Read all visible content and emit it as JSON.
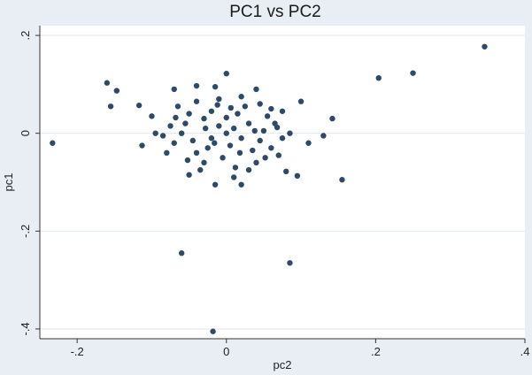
{
  "chart_data": {
    "type": "scatter",
    "title": "PC1 vs PC2",
    "xlabel": "pc2",
    "ylabel": "pc1",
    "xlim": [
      -0.25,
      0.4
    ],
    "ylim": [
      -0.42,
      0.22
    ],
    "xticks": [
      {
        "value": -0.2,
        "label": "-.2"
      },
      {
        "value": 0,
        "label": "0"
      },
      {
        "value": 0.2,
        "label": ".2"
      },
      {
        "value": 0.4,
        "label": ".4"
      }
    ],
    "yticks": [
      {
        "value": 0.2,
        "label": ".2"
      },
      {
        "value": 0,
        "label": "0"
      },
      {
        "value": -0.2,
        "label": "-.2"
      },
      {
        "value": -0.4,
        "label": "-.4"
      }
    ],
    "grid": true,
    "marker_color": "#2d4a68",
    "plot_background": "#ffffff",
    "page_background": "#e8eef3",
    "points": [
      {
        "x": 0.346,
        "y": 0.177
      },
      {
        "x": 0.25,
        "y": 0.123
      },
      {
        "x": 0.204,
        "y": 0.113
      },
      {
        "x": -0.233,
        "y": -0.02
      },
      {
        "x": -0.16,
        "y": 0.103
      },
      {
        "x": -0.147,
        "y": 0.087
      },
      {
        "x": -0.155,
        "y": 0.055
      },
      {
        "x": -0.117,
        "y": 0.057
      },
      {
        "x": -0.113,
        "y": -0.025
      },
      {
        "x": 0.155,
        "y": -0.095
      },
      {
        "x": 0.142,
        "y": 0.03
      },
      {
        "x": 0.13,
        "y": -0.005
      },
      {
        "x": 0.1,
        "y": 0.065
      },
      {
        "x": 0.085,
        "y": -0.265
      },
      {
        "x": -0.06,
        "y": -0.245
      },
      {
        "x": -0.018,
        "y": -0.405
      },
      {
        "x": 0.0,
        "y": 0.122
      },
      {
        "x": -0.04,
        "y": 0.097
      },
      {
        "x": -0.07,
        "y": 0.09
      },
      {
        "x": 0.04,
        "y": 0.09
      },
      {
        "x": -0.015,
        "y": 0.095
      },
      {
        "x": 0.095,
        "y": -0.087
      },
      {
        "x": 0.08,
        "y": -0.078
      },
      {
        "x": 0.11,
        "y": -0.02
      },
      {
        "x": 0.075,
        "y": 0.045
      },
      {
        "x": -0.1,
        "y": 0.035
      },
      {
        "x": -0.095,
        "y": 0.0
      },
      {
        "x": -0.08,
        "y": -0.04
      },
      {
        "x": -0.05,
        "y": -0.085
      },
      {
        "x": -0.015,
        "y": -0.105
      },
      {
        "x": 0.01,
        "y": -0.09
      },
      {
        "x": 0.02,
        "y": -0.105
      },
      {
        "x": 0.065,
        "y": 0.02
      },
      {
        "x": 0.06,
        "y": -0.03
      },
      {
        "x": -0.065,
        "y": 0.055
      },
      {
        "x": -0.04,
        "y": 0.065
      },
      {
        "x": 0.02,
        "y": 0.075
      },
      {
        "x": -0.01,
        "y": 0.07
      },
      {
        "x": 0.045,
        "y": 0.06
      },
      {
        "x": -0.085,
        "y": -0.005
      },
      {
        "x": -0.07,
        "y": -0.02
      },
      {
        "x": 0.085,
        "y": 0.0
      },
      {
        "x": 0.07,
        "y": -0.045
      },
      {
        "x": 0.04,
        "y": -0.06
      },
      {
        "x": -0.03,
        "y": -0.06
      },
      {
        "x": -0.055,
        "y": 0.02
      },
      {
        "x": 0.0,
        "y": 0.0
      },
      {
        "x": 0.01,
        "y": 0.01
      },
      {
        "x": -0.01,
        "y": 0.015
      },
      {
        "x": 0.02,
        "y": -0.01
      },
      {
        "x": -0.02,
        "y": -0.01
      },
      {
        "x": 0.03,
        "y": 0.02
      },
      {
        "x": -0.03,
        "y": 0.03
      },
      {
        "x": 0.005,
        "y": -0.025
      },
      {
        "x": -0.045,
        "y": -0.015
      },
      {
        "x": 0.05,
        "y": 0.005
      },
      {
        "x": 0.015,
        "y": 0.04
      },
      {
        "x": -0.02,
        "y": 0.045
      },
      {
        "x": 0.035,
        "y": -0.035
      },
      {
        "x": -0.04,
        "y": -0.04
      },
      {
        "x": 0.055,
        "y": 0.035
      },
      {
        "x": -0.06,
        "y": 0.0
      },
      {
        "x": 0.025,
        "y": 0.055
      },
      {
        "x": -0.005,
        "y": -0.05
      },
      {
        "x": 0.045,
        "y": -0.015
      },
      {
        "x": -0.025,
        "y": -0.03
      },
      {
        "x": 0.06,
        "y": 0.05
      },
      {
        "x": -0.05,
        "y": 0.04
      },
      {
        "x": 0.012,
        "y": -0.07
      },
      {
        "x": -0.012,
        "y": 0.058
      },
      {
        "x": 0.075,
        "y": -0.01
      },
      {
        "x": -0.075,
        "y": 0.015
      },
      {
        "x": 0.03,
        "y": -0.075
      },
      {
        "x": -0.035,
        "y": -0.075
      },
      {
        "x": 0.0,
        "y": 0.032
      },
      {
        "x": 0.018,
        "y": -0.04
      },
      {
        "x": -0.016,
        "y": -0.02
      },
      {
        "x": 0.038,
        "y": 0.005
      },
      {
        "x": -0.028,
        "y": 0.01
      },
      {
        "x": 0.006,
        "y": 0.052
      },
      {
        "x": 0.052,
        "y": -0.05
      },
      {
        "x": -0.052,
        "y": -0.055
      },
      {
        "x": 0.068,
        "y": 0.012
      },
      {
        "x": -0.068,
        "y": 0.032
      }
    ]
  }
}
